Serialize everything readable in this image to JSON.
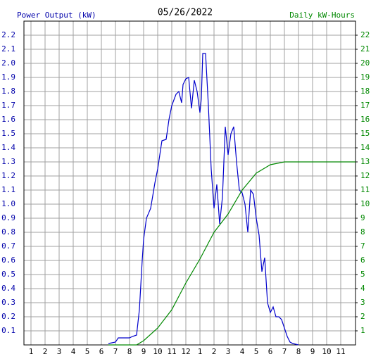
{
  "chart_data": {
    "type": "line",
    "title": "05/26/2022",
    "y_label": "Power Output (kW)",
    "y2_label": "Daily kW-Hours",
    "y_label_color": "#0000aa",
    "y2_label_color": "#008800",
    "xlim": [
      0.5,
      24.05
    ],
    "xticks": [
      1,
      2,
      3,
      4,
      5,
      6,
      7,
      8,
      9,
      10,
      11,
      12,
      {
        "value": 13,
        "label": "1"
      },
      {
        "value": 14,
        "label": "2"
      },
      {
        "value": 15,
        "label": "3"
      },
      {
        "value": 16,
        "label": "4"
      },
      {
        "value": 17,
        "label": "5"
      },
      {
        "value": 18,
        "label": "6"
      },
      {
        "value": 19,
        "label": "7"
      },
      {
        "value": 20,
        "label": "8"
      },
      {
        "value": 21,
        "label": "9"
      },
      {
        "value": 22,
        "label": "10"
      },
      {
        "value": 23,
        "label": "11"
      }
    ],
    "ylim": [
      0,
      2.3
    ],
    "yticks": [
      0.1,
      0.2,
      0.3,
      0.4,
      0.5,
      0.6,
      0.7,
      0.8,
      0.9,
      {
        "value": 1,
        "label": "1.0"
      },
      1.1,
      1.2,
      1.3,
      1.4,
      1.5,
      1.6,
      1.7,
      1.8,
      1.9,
      {
        "value": 2,
        "label": "2.0"
      },
      2.1,
      2.2
    ],
    "y2lim": [
      0,
      23
    ],
    "y2ticks": [
      1,
      2,
      3,
      4,
      5,
      6,
      7,
      8,
      9,
      10,
      11,
      12,
      13,
      14,
      15,
      16,
      17,
      18,
      19,
      20,
      21,
      22
    ],
    "grid": true,
    "series": [
      {
        "name": "Power Output (kW)",
        "color": "#0000cc",
        "x": [
          6.5,
          7,
          7.2,
          7.5,
          8,
          8.2,
          8.5,
          8.7,
          8.9,
          9.0,
          9.2,
          9.5,
          9.8,
          10.0,
          10.3,
          10.6,
          10.8,
          11.0,
          11.3,
          11.5,
          11.7,
          11.8,
          12.0,
          12.2,
          12.4,
          12.6,
          12.8,
          13.0,
          13.1,
          13.2,
          13.4,
          13.6,
          13.8,
          14.0,
          14.2,
          14.4,
          14.6,
          14.8,
          15.0,
          15.2,
          15.4,
          15.6,
          15.8,
          16.0,
          16.2,
          16.4,
          16.6,
          16.8,
          17.0,
          17.2,
          17.4,
          17.6,
          17.8,
          18.0,
          18.2,
          18.4,
          18.6,
          18.8,
          19.0,
          19.2,
          19.4,
          19.6,
          20
        ],
        "values": [
          0.01,
          0.02,
          0.05,
          0.05,
          0.05,
          0.06,
          0.07,
          0.25,
          0.6,
          0.75,
          0.9,
          0.97,
          1.15,
          1.25,
          1.45,
          1.46,
          1.6,
          1.7,
          1.78,
          1.8,
          1.72,
          1.85,
          1.89,
          1.9,
          1.68,
          1.88,
          1.8,
          1.65,
          1.75,
          2.07,
          2.07,
          1.7,
          1.25,
          0.97,
          1.14,
          0.86,
          1.05,
          1.55,
          1.35,
          1.5,
          1.55,
          1.3,
          1.1,
          1.08,
          1.0,
          0.8,
          1.1,
          1.07,
          0.9,
          0.78,
          0.52,
          0.62,
          0.3,
          0.23,
          0.27,
          0.2,
          0.2,
          0.18,
          0.12,
          0.06,
          0.02,
          0.01,
          0.0
        ]
      },
      {
        "name": "Daily kW-Hours",
        "color": "#008800",
        "axis": "y2",
        "x": [
          6.5,
          8.5,
          9,
          10,
          11,
          12,
          13,
          14,
          15,
          16,
          17,
          18,
          19,
          24.05
        ],
        "values": [
          0,
          0,
          0.3,
          1.2,
          2.5,
          4.4,
          6.1,
          8.0,
          9.3,
          11.0,
          12.2,
          12.8,
          13.0,
          13.0
        ]
      }
    ]
  }
}
